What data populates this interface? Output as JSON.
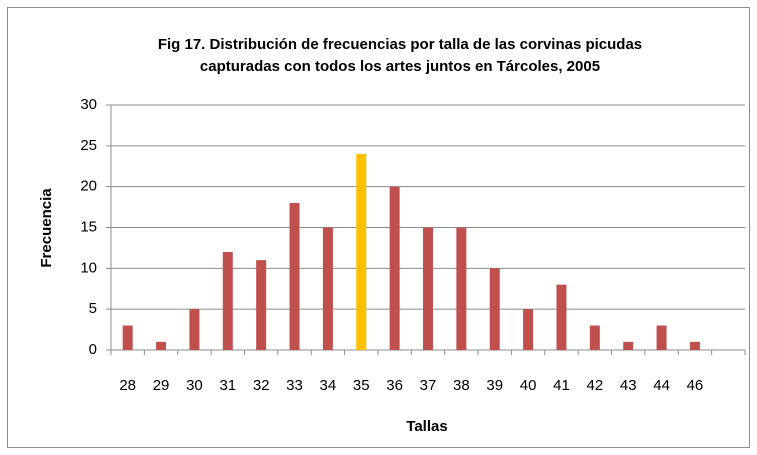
{
  "chart_data": {
    "type": "bar",
    "title": [
      "Fig 17. Distribución de frecuencias por talla de las corvinas picudas",
      "capturadas con todos los artes juntos en Tárcoles, 2005"
    ],
    "x_label": "Tallas",
    "y_label": "Frecuencia",
    "categories": [
      "28",
      "29",
      "30",
      "31",
      "32",
      "33",
      "34",
      "35",
      "36",
      "37",
      "38",
      "39",
      "40",
      "41",
      "42",
      "43",
      "44",
      "46",
      null
    ],
    "values": [
      3,
      1,
      5,
      12,
      11,
      18,
      15,
      24,
      20,
      15,
      15,
      10,
      5,
      8,
      3,
      1,
      3,
      1,
      null
    ],
    "colors": [
      "#c0504d",
      "#c0504d",
      "#c0504d",
      "#c0504d",
      "#c0504d",
      "#c0504d",
      "#c0504d",
      "#ffc000",
      "#c0504d",
      "#c0504d",
      "#c0504d",
      "#c0504d",
      "#c0504d",
      "#c0504d",
      "#c0504d",
      "#c0504d",
      "#c0504d",
      "#c0504d",
      null
    ],
    "ylim": [
      0,
      30
    ],
    "yticks": [
      0,
      5,
      10,
      15,
      20,
      25,
      30
    ],
    "grid": true
  }
}
